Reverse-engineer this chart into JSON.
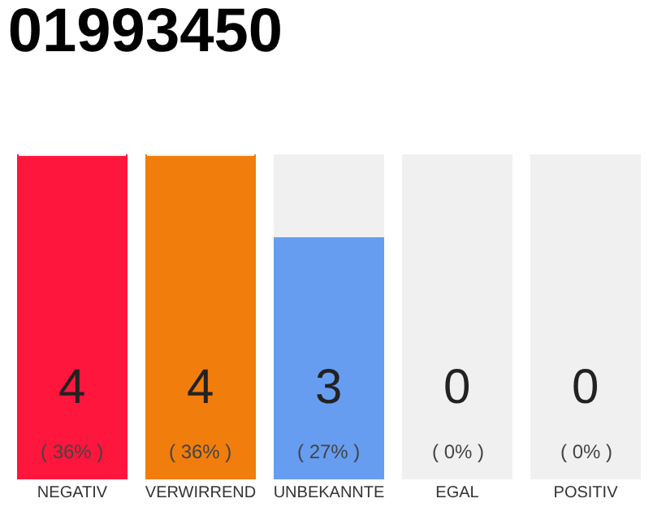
{
  "chart_data": {
    "type": "bar",
    "title": "01993450",
    "stacked": true,
    "categories": [
      "NEGATIV",
      "VERWIRREND",
      "UNBEKANNTE",
      "EGAL",
      "POSITIV"
    ],
    "series": [
      {
        "colors": [
          "#ff163c",
          "#f07d0c",
          "#669df0",
          "#8bc34a",
          "#2da84e"
        ],
        "values": [
          4,
          4,
          3,
          0,
          0
        ],
        "value_labels": [
          "4",
          "4",
          "3",
          "0",
          "0"
        ]
      },
      {
        "color": "#f0f0f0",
        "values": [
          0,
          0,
          1,
          4,
          4
        ]
      }
    ],
    "annotations": [
      {
        "text": "( 36% )",
        "x": "NEGATIV",
        "y": 0
      },
      {
        "text": "( 36% )",
        "x": "VERWIRREND",
        "y": 0
      },
      {
        "text": "( 27% )",
        "x": "UNBEKANNTE",
        "y": 0
      },
      {
        "text": "( 0% )",
        "x": "EGAL",
        "y": 0
      },
      {
        "text": "( 0% )",
        "x": "POSITIV",
        "y": 0
      }
    ],
    "ylim": [
      0,
      4
    ],
    "tick_labels": "x"
  }
}
